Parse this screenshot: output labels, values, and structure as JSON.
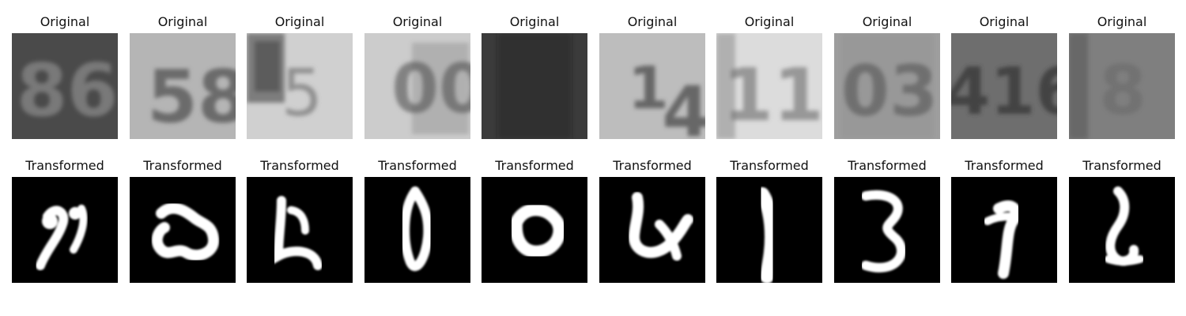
{
  "figure": {
    "rows": [
      {
        "row_name": "original",
        "titles": [
          "Original",
          "Original",
          "Original",
          "Original",
          "Original",
          "Original",
          "Original",
          "Original",
          "Original",
          "Original"
        ],
        "images": [
          {
            "content": "house number 86, dark gray, blurry",
            "bg": "#4a4a4a",
            "fg": "#8a8a8a"
          },
          {
            "content": "house number 58, gray",
            "bg": "#b5b5b5",
            "fg": "#5f5f5f"
          },
          {
            "content": "digit 5 with dark block at left, light gray",
            "bg": "#d0d0d0",
            "fg": "#7a7a7a"
          },
          {
            "content": "digits 00 framed, light gray",
            "bg": "#cccccc",
            "fg": "#5a5a5a"
          },
          {
            "content": "dark blurry patch, no clear digit",
            "bg": "#3b3b3b",
            "fg": "#2a2a2a"
          },
          {
            "content": "digits 14, light gray",
            "bg": "#bdbdbd",
            "fg": "#4a4a4a"
          },
          {
            "content": "digits 11 on light sign",
            "bg": "#dcdcdc",
            "fg": "#6a6a6a"
          },
          {
            "content": "digits 03 with border",
            "bg": "#9e9e9e",
            "fg": "#555555"
          },
          {
            "content": "digits 416, gray",
            "bg": "#6e6e6e",
            "fg": "#3a3a3a"
          },
          {
            "content": "digit 8, blurry",
            "bg": "#7f7f7f",
            "fg": "#5a5a5a"
          }
        ]
      },
      {
        "row_name": "transformed",
        "titles": [
          "Transformed",
          "Transformed",
          "Transformed",
          "Transformed",
          "Transformed",
          "Transformed",
          "Transformed",
          "Transformed",
          "Transformed",
          "Transformed"
        ],
        "images": [
          {
            "content": "white stroke on black resembling 7",
            "bg": "#000000",
            "fg": "#ffffff"
          },
          {
            "content": "white blob shape",
            "bg": "#000000",
            "fg": "#ffffff"
          },
          {
            "content": "white stroke resembling 5",
            "bg": "#000000",
            "fg": "#ffffff"
          },
          {
            "content": "white stroke resembling 0",
            "bg": "#000000",
            "fg": "#ffffff"
          },
          {
            "content": "white blob resembling 0",
            "bg": "#000000",
            "fg": "#ffffff"
          },
          {
            "content": "white stroke resembling 4",
            "bg": "#000000",
            "fg": "#ffffff"
          },
          {
            "content": "white stroke resembling 1",
            "bg": "#000000",
            "fg": "#ffffff"
          },
          {
            "content": "white stroke resembling 3",
            "bg": "#000000",
            "fg": "#ffffff"
          },
          {
            "content": "white stroke resembling 1",
            "bg": "#000000",
            "fg": "#ffffff"
          },
          {
            "content": "white stroke resembling 6",
            "bg": "#000000",
            "fg": "#ffffff"
          }
        ]
      }
    ]
  }
}
